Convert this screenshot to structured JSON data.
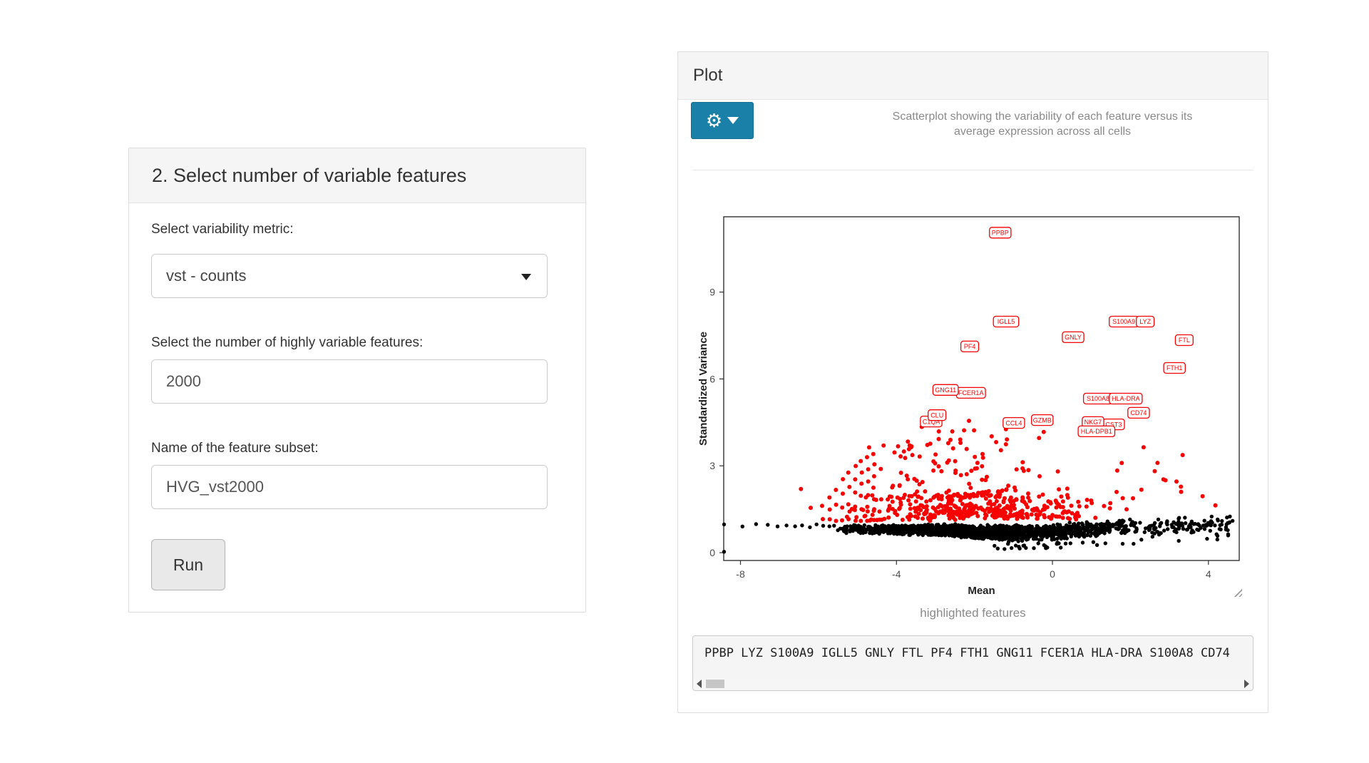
{
  "left_panel": {
    "title": "2. Select number of variable features",
    "metric_label": "Select variability metric:",
    "metric_value": "vst - counts",
    "n_features_label": "Select the number of highly variable features:",
    "n_features_value": "2000",
    "subset_label": "Name of the feature subset:",
    "subset_value": "HVG_vst2000",
    "run_label": "Run"
  },
  "plot_panel": {
    "title": "Plot",
    "accent_color": "#1b80a7",
    "caption_lines": [
      "Scatterplot showing the variability of each feature versus its",
      "average expression across all cells"
    ],
    "highlighted_caption": "highlighted features",
    "features_text": "PPBP LYZ S100A9 IGLL5 GNLY FTL PF4 FTH1 GNG11 FCER1A HLA-DRA S100A8 CD74"
  },
  "icons": {
    "gear_glyph": "⚙"
  },
  "chart_data": {
    "type": "scatter",
    "xlabel": "Mean",
    "ylabel": "Standardized Variance",
    "x_ticks": [
      -8,
      -4,
      0,
      4
    ],
    "y_ticks": [
      0,
      3,
      6,
      9
    ],
    "xlim": [
      -8.43,
      4.79
    ],
    "ylim": [
      -0.27,
      11.6
    ],
    "grid": false,
    "point_colors": {
      "highlighted": "#f80000",
      "normal": "#000000"
    },
    "labeled_points": [
      {
        "name": "IGLL5",
        "x": -1.19,
        "y": 7.98
      },
      {
        "name": "S100A9",
        "x": 1.83,
        "y": 7.98
      },
      {
        "name": "LYZ",
        "x": 2.38,
        "y": 7.98
      },
      {
        "name": "GNLY",
        "x": 0.53,
        "y": 7.44
      },
      {
        "name": "FTL",
        "x": 3.38,
        "y": 7.34
      },
      {
        "name": "PF4",
        "x": -2.12,
        "y": 7.12
      },
      {
        "name": "FTH1",
        "x": 3.13,
        "y": 6.38
      },
      {
        "name": "FCER1A",
        "x": -2.09,
        "y": 5.52
      },
      {
        "name": "GNG11",
        "x": -2.74,
        "y": 5.62
      },
      {
        "name": "S100A8",
        "x": 1.17,
        "y": 5.32
      },
      {
        "name": "HLA-DRA",
        "x": 1.88,
        "y": 5.32
      },
      {
        "name": "CD74",
        "x": 2.21,
        "y": 4.83
      },
      {
        "name": "C1QA",
        "x": -3.11,
        "y": 4.53
      },
      {
        "name": "CLU",
        "x": -2.96,
        "y": 4.75
      },
      {
        "name": "GZMB",
        "x": -0.26,
        "y": 4.58
      },
      {
        "name": "CCL4",
        "x": -0.99,
        "y": 4.48
      },
      {
        "name": "CST3",
        "x": 1.57,
        "y": 4.43
      },
      {
        "name": "NKG7",
        "x": 1.04,
        "y": 4.51
      },
      {
        "name": "HLA-DPB1",
        "x": 1.13,
        "y": 4.19
      },
      {
        "name": "PPBP",
        "x": -1.34,
        "y": 11.05
      }
    ],
    "cloud": {
      "seed": 7,
      "black_n": 2000,
      "right_tail_frac": 0.1,
      "carpet_n": 360,
      "halo_n": 140,
      "red_right_n": 16,
      "black_left_xs": [
        -8.42,
        -7.95,
        -7.6,
        -7.3,
        -7.05,
        -6.82,
        -6.6,
        -6.42,
        -6.22,
        -6.05,
        -5.88,
        -5.72,
        -5.6
      ],
      "red_left_columns": [
        [
          -5.9,
          2,
          1.6
        ],
        [
          -5.72,
          3,
          1.9
        ],
        [
          -5.55,
          3,
          2.2
        ],
        [
          -5.38,
          4,
          2.5
        ],
        [
          -5.22,
          4,
          2.8
        ],
        [
          -5.06,
          5,
          3.0
        ],
        [
          -4.9,
          6,
          3.2
        ],
        [
          -4.74,
          6,
          3.3
        ],
        [
          -4.58,
          7,
          3.4
        ]
      ],
      "extra_red": [
        [
          3.85,
          1.95
        ],
        [
          4.18,
          1.63
        ],
        [
          3.3,
          2.1
        ],
        [
          2.9,
          2.5
        ],
        [
          -6.45,
          2.2
        ],
        [
          -6.2,
          1.55
        ]
      ],
      "extra_black": [
        [
          -8.42,
          0.03
        ],
        [
          4.55,
          1.25
        ],
        [
          4.3,
          0.95
        ],
        [
          4.45,
          0.8
        ],
        [
          4.62,
          1.1
        ]
      ]
    }
  }
}
